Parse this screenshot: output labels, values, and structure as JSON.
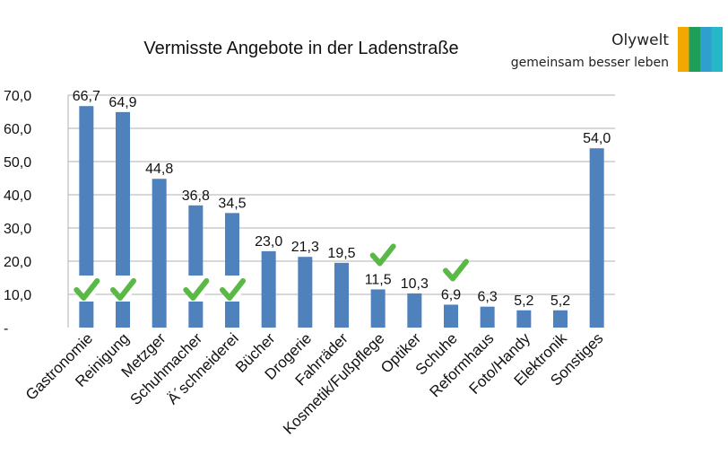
{
  "brand": {
    "name": "Olywelt",
    "tagline": "gemeinsam besser leben",
    "colors": [
      "#f2a800",
      "#1e9e58",
      "#2f9fcf",
      "#26b7c9"
    ]
  },
  "colors": {
    "bar": "#4f81bd",
    "check": "#5ab946",
    "grid": "#b0b0b0",
    "text": "#111111"
  },
  "chart_data": {
    "type": "bar",
    "title": "Vermisste Angebote in der Ladenstraße",
    "xlabel": "",
    "ylabel": "",
    "ylim": [
      0,
      70
    ],
    "yticks": [
      "-",
      "10,0",
      "20,0",
      "30,0",
      "40,0",
      "50,0",
      "60,0",
      "70,0"
    ],
    "grid": true,
    "categories": [
      "Gastronomie",
      "Reinigung",
      "Metzger",
      "Schuhmacher",
      "Ä´schneiderei",
      "Bücher",
      "Drogerie",
      "Fahrräder",
      "Kosmetik/Fußpflege",
      "Optiker",
      "Schuhe",
      "Reformhaus",
      "Foto/Handy",
      "Elektronik",
      "Sonstiges"
    ],
    "values": [
      66.7,
      64.9,
      44.8,
      36.8,
      34.5,
      23.0,
      21.3,
      19.5,
      11.5,
      10.3,
      6.9,
      6.3,
      5.2,
      5.2,
      54.0
    ],
    "value_labels": [
      "66,7",
      "64,9",
      "44,8",
      "36,8",
      "34,5",
      "23,0",
      "21,3",
      "19,5",
      "11,5",
      "10,3",
      "6,9",
      "6,3",
      "5,2",
      "5,2",
      "54,0"
    ],
    "checkmarks": [
      "Gastronomie",
      "Reinigung",
      "Schuhmacher",
      "Ä´schneiderei",
      "Kosmetik/Fußpflege",
      "Schuhe"
    ]
  }
}
